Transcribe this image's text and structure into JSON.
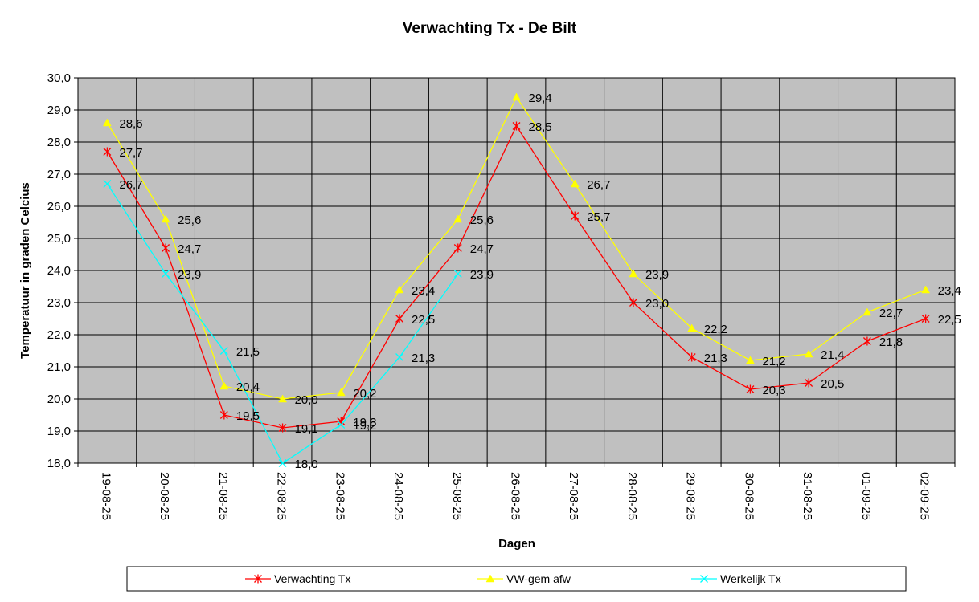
{
  "chart_data": {
    "type": "line",
    "title": "Verwachting Tx - De Bilt",
    "xlabel": "Dagen",
    "ylabel": "Temperatuur in graden Celcius",
    "categories": [
      "19-08-25",
      "20-08-25",
      "21-08-25",
      "22-08-25",
      "23-08-25",
      "24-08-25",
      "25-08-25",
      "26-08-25",
      "27-08-25",
      "28-08-25",
      "29-08-25",
      "30-08-25",
      "31-08-25",
      "01-09-25",
      "02-09-25"
    ],
    "ylim": [
      18.0,
      30.0
    ],
    "ytick_step": 1.0,
    "ytick_labels": [
      "18,0",
      "19,0",
      "20,0",
      "21,0",
      "22,0",
      "23,0",
      "24,0",
      "25,0",
      "26,0",
      "27,0",
      "28,0",
      "29,0",
      "30,0"
    ],
    "grid": true,
    "legend_position": "bottom",
    "series": [
      {
        "name": "Verwachting Tx",
        "color": "#ff0000",
        "marker": "star",
        "values": [
          27.7,
          24.7,
          19.5,
          19.1,
          19.3,
          22.5,
          24.7,
          28.5,
          25.7,
          23.0,
          21.3,
          20.3,
          20.5,
          21.8,
          22.5
        ],
        "labels": [
          "27,7",
          "24,7",
          "19,5",
          "19,1",
          "19,3",
          "22,5",
          "24,7",
          "28,5",
          "25,7",
          "23,0",
          "21,3",
          "20,3",
          "20,5",
          "21,8",
          "22,5"
        ]
      },
      {
        "name": "VW-gem afw",
        "color": "#ffff00",
        "marker": "triangle",
        "values": [
          28.6,
          25.6,
          20.4,
          20.0,
          20.2,
          23.4,
          25.6,
          29.4,
          26.7,
          23.9,
          22.2,
          21.2,
          21.4,
          22.7,
          23.4
        ],
        "labels": [
          "28,6",
          "25,6",
          "20,4",
          "20,0",
          "20,2",
          "23,4",
          "25,6",
          "29,4",
          "26,7",
          "23,9",
          "22,2",
          "21,2",
          "21,4",
          "22,7",
          "23,4"
        ]
      },
      {
        "name": "Werkelijk Tx",
        "color": "#00ffff",
        "marker": "x",
        "values": [
          26.7,
          23.9,
          21.5,
          18.0,
          19.2,
          21.3,
          23.9,
          null,
          null,
          null,
          null,
          null,
          null,
          null,
          null
        ],
        "labels": [
          "26,7",
          "23,9",
          "21,5",
          "18,0",
          "19,2",
          "21,3",
          "23,9",
          null,
          null,
          null,
          null,
          null,
          null,
          null,
          null
        ]
      }
    ]
  }
}
